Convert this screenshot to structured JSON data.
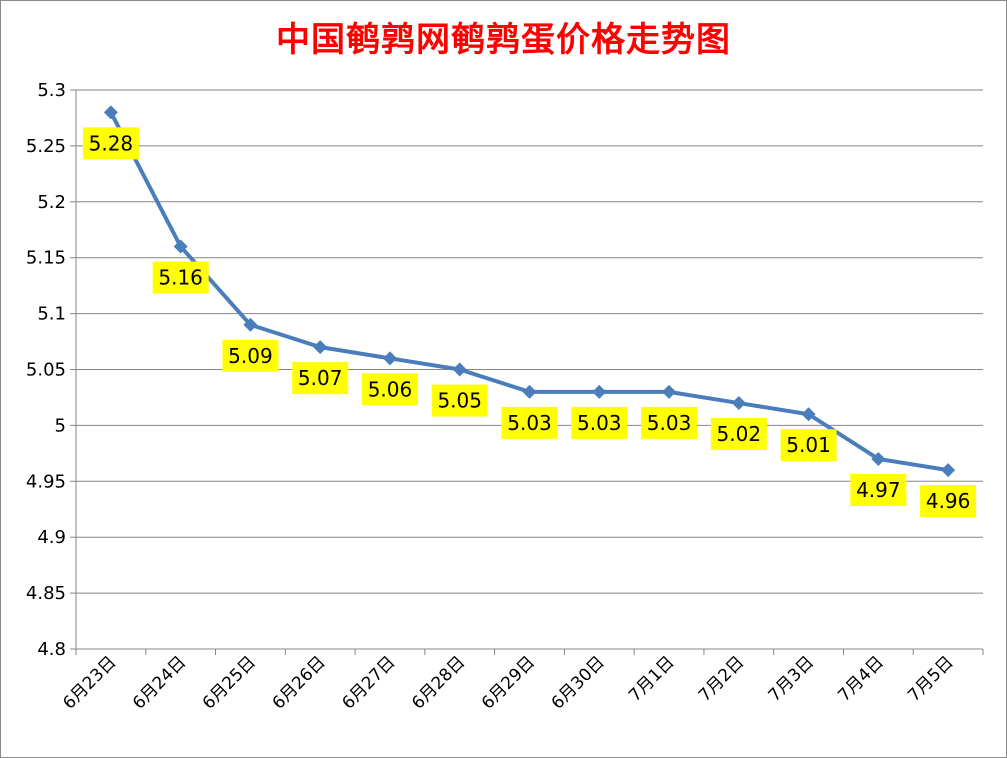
{
  "chart_data": {
    "type": "line",
    "title": "中国鹌鹑网鹌鹑蛋价格走势图",
    "categories": [
      "6月23日",
      "6月24日",
      "6月25日",
      "6月26日",
      "6月27日",
      "6月28日",
      "6月29日",
      "6月30日",
      "7月1日",
      "7月2日",
      "7月3日",
      "7月4日",
      "7月5日"
    ],
    "series": [
      {
        "values": [
          5.28,
          5.16,
          5.09,
          5.07,
          5.06,
          5.05,
          5.03,
          5.03,
          5.03,
          5.02,
          5.01,
          4.97,
          4.96
        ],
        "labels": [
          "5.28",
          "5.16",
          "5.09",
          "5.07",
          "5.06",
          "5.05",
          "5.03",
          "5.03",
          "5.03",
          "5.02",
          "5.01",
          "4.97",
          "4.96"
        ]
      }
    ],
    "yticks": [
      "4.8",
      "4.85",
      "4.9",
      "4.95",
      "5",
      "5.05",
      "5.1",
      "5.15",
      "5.2",
      "5.25",
      "5.3"
    ],
    "ylim": [
      4.8,
      5.3
    ],
    "grid": true,
    "legend": "none",
    "colors": {
      "line": "#4a7ebb",
      "label_bg": "#ffff00",
      "title": "#ff0000",
      "grid": "#868686"
    }
  }
}
